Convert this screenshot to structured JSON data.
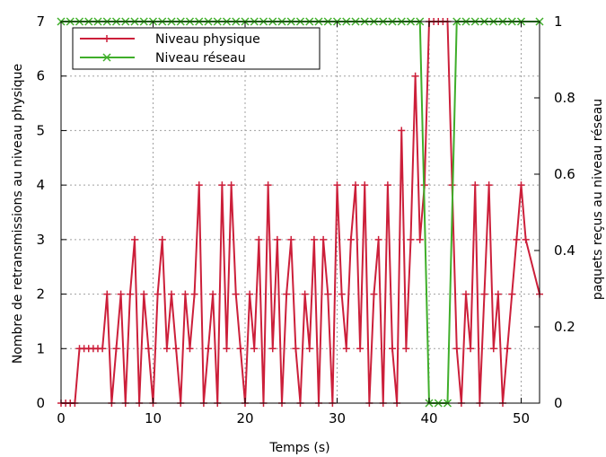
{
  "chart_data": {
    "type": "line",
    "xlabel": "Temps (s)",
    "ylabel": "Nombre de retransmissions au niveau physique",
    "y2label": "paquets reçus au niveau réseau",
    "xlim": [
      0,
      52
    ],
    "ylim": [
      0,
      7
    ],
    "y2lim": [
      0,
      1
    ],
    "xticks": [
      "0",
      "10",
      "20",
      "30",
      "40",
      "50"
    ],
    "yticks": [
      "0",
      "1",
      "2",
      "3",
      "4",
      "5",
      "6",
      "7"
    ],
    "y2ticks": [
      "0",
      "0.2",
      "0.4",
      "0.6",
      "0.8",
      "1"
    ],
    "grid": true,
    "legend_position": "top-left",
    "series": [
      {
        "name": "Niveau physique",
        "axis": "left",
        "color": "#cc1f3a",
        "marker": "plus",
        "x": [
          0,
          0.5,
          1,
          1.5,
          2,
          2.5,
          3,
          3.5,
          4,
          4.5,
          5,
          5.5,
          6,
          6.5,
          7,
          7.5,
          8,
          8.5,
          9,
          9.5,
          10,
          10.5,
          11,
          11.5,
          12,
          12.5,
          13,
          13.5,
          14,
          14.5,
          15,
          15.5,
          16,
          16.5,
          17,
          17.5,
          18,
          18.5,
          19,
          19.5,
          20,
          20.5,
          21,
          21.5,
          22,
          22.5,
          23,
          23.5,
          24,
          24.5,
          25,
          25.5,
          26,
          26.5,
          27,
          27.5,
          28,
          28.5,
          29,
          29.5,
          30,
          30.5,
          31,
          31.5,
          32,
          32.5,
          33,
          33.5,
          34,
          34.5,
          35,
          35.5,
          36,
          36.5,
          37,
          37.5,
          38,
          38.5,
          39,
          39.5,
          40,
          40.5,
          41,
          41.5,
          42,
          42.5,
          43,
          43.5,
          44,
          44.5,
          45,
          45.5,
          46,
          46.5,
          47,
          47.5,
          48,
          48.5,
          49,
          49.5,
          50,
          50.5,
          52
        ],
        "values": [
          0,
          0,
          0,
          0,
          1,
          1,
          1,
          1,
          1,
          1,
          2,
          0,
          1,
          2,
          0,
          2,
          3,
          0,
          2,
          1,
          0,
          2,
          3,
          1,
          2,
          1,
          0,
          2,
          1,
          2,
          4,
          0,
          1,
          2,
          0,
          4,
          1,
          4,
          2,
          1,
          0,
          2,
          1,
          3,
          0,
          4,
          1,
          3,
          0,
          2,
          3,
          1,
          0,
          2,
          1,
          3,
          0,
          3,
          2,
          0,
          4,
          2,
          1,
          3,
          4,
          1,
          4,
          0,
          2,
          3,
          0,
          4,
          1,
          0,
          5,
          1,
          3,
          6,
          3,
          4,
          7,
          7,
          7,
          7,
          7,
          4,
          1,
          0,
          2,
          1,
          4,
          0,
          2,
          4,
          1,
          2,
          0,
          1,
          2,
          3,
          4,
          3,
          2
        ]
      },
      {
        "name": "Niveau réseau",
        "axis": "right",
        "color": "#3fae2a",
        "marker": "x",
        "x": [
          0,
          1,
          2,
          3,
          4,
          5,
          6,
          7,
          8,
          9,
          10,
          11,
          12,
          13,
          14,
          15,
          16,
          17,
          18,
          19,
          20,
          21,
          22,
          23,
          24,
          25,
          26,
          27,
          28,
          29,
          30,
          31,
          32,
          33,
          34,
          35,
          36,
          37,
          38,
          39,
          40,
          41,
          42,
          43,
          44,
          45,
          46,
          47,
          48,
          49,
          50,
          52
        ],
        "values": [
          1,
          1,
          1,
          1,
          1,
          1,
          1,
          1,
          1,
          1,
          1,
          1,
          1,
          1,
          1,
          1,
          1,
          1,
          1,
          1,
          1,
          1,
          1,
          1,
          1,
          1,
          1,
          1,
          1,
          1,
          1,
          1,
          1,
          1,
          1,
          1,
          1,
          1,
          1,
          1,
          0,
          0,
          0,
          1,
          1,
          1,
          1,
          1,
          1,
          1,
          1,
          1
        ]
      }
    ]
  }
}
